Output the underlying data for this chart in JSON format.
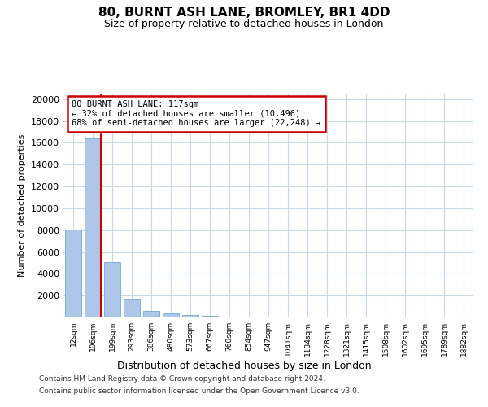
{
  "title1": "80, BURNT ASH LANE, BROMLEY, BR1 4DD",
  "title2": "Size of property relative to detached houses in London",
  "xlabel": "Distribution of detached houses by size in London",
  "ylabel": "Number of detached properties",
  "categories": [
    "12sqm",
    "106sqm",
    "199sqm",
    "293sqm",
    "386sqm",
    "480sqm",
    "573sqm",
    "667sqm",
    "760sqm",
    "854sqm",
    "947sqm",
    "1041sqm",
    "1134sqm",
    "1228sqm",
    "1321sqm",
    "1415sqm",
    "1508sqm",
    "1602sqm",
    "1695sqm",
    "1789sqm",
    "1882sqm"
  ],
  "values": [
    8050,
    16400,
    5100,
    1750,
    600,
    350,
    200,
    150,
    100,
    0,
    0,
    0,
    0,
    0,
    0,
    0,
    0,
    0,
    0,
    0,
    0
  ],
  "bar_color": "#aec6e8",
  "bar_edge_color": "#5a9fd4",
  "property_line_color": "#cc0000",
  "annotation_text": "80 BURNT ASH LANE: 117sqm\n← 32% of detached houses are smaller (10,496)\n68% of semi-detached houses are larger (22,248) →",
  "annotation_box_color": "#cc0000",
  "ylim": [
    0,
    20500
  ],
  "yticks": [
    0,
    2000,
    4000,
    6000,
    8000,
    10000,
    12000,
    14000,
    16000,
    18000,
    20000
  ],
  "background_color": "#ffffff",
  "grid_color": "#c8d8e8",
  "footer1": "Contains HM Land Registry data © Crown copyright and database right 2024.",
  "footer2": "Contains public sector information licensed under the Open Government Licence v3.0."
}
